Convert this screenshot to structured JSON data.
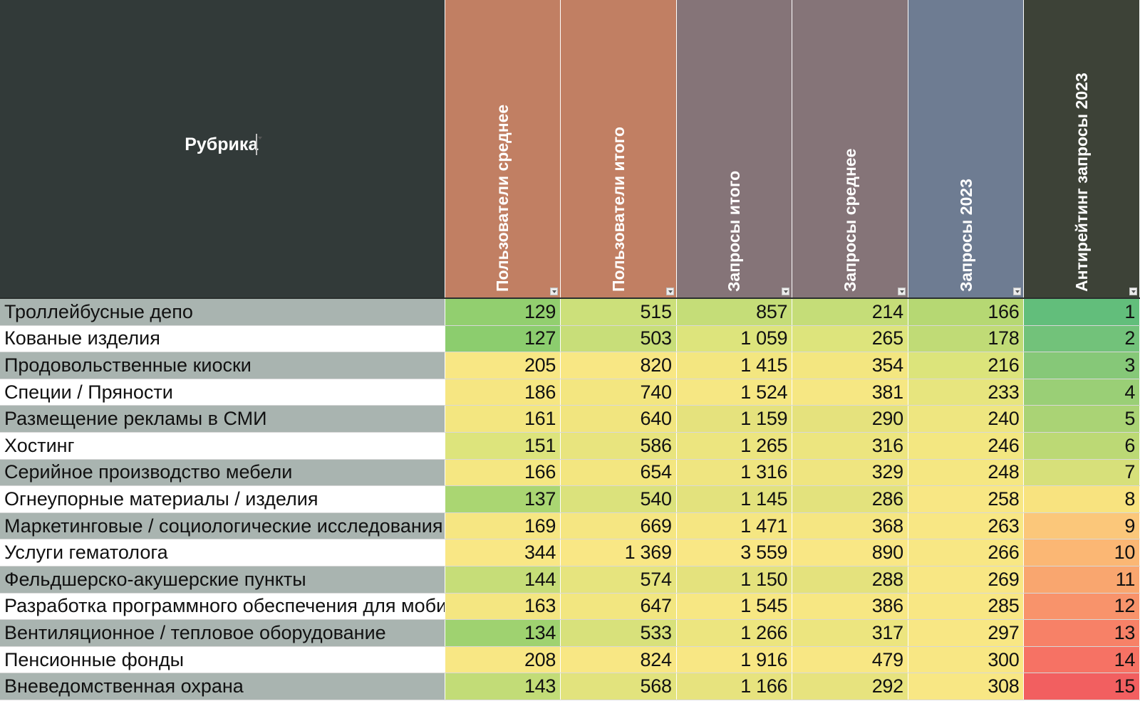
{
  "headers": {
    "rubric": "Рубрика",
    "users_avg": "Пользователи среднее",
    "users_total": "Пользователи итого",
    "requests_total": "Запросы итого",
    "requests_avg": "Запросы среднее",
    "requests_2023": "Запросы 2023",
    "antirating_2023": "Антирейтинг запросы 2023"
  },
  "header_colors": {
    "rubric": "#323a39",
    "users_avg": "#c17f63",
    "users_total": "#c17f63",
    "requests_total": "#857478",
    "requests_avg": "#857478",
    "requests_2023": "#6e7c92",
    "antirating_2023": "#3d4237"
  },
  "rows": [
    {
      "rubric": "Троллейбусные депо",
      "users_avg": "129",
      "users_total": "515",
      "requests_total": "857",
      "requests_avg": "214",
      "requests_2023": "166",
      "antirating_2023": "1",
      "colors": [
        "#92cf6f",
        "#cce07a",
        "#c5dd78",
        "#c5dd78",
        "#b6d873",
        "#62be7b"
      ]
    },
    {
      "rubric": "Кованые изделия",
      "users_avg": "127",
      "users_total": "503",
      "requests_total": "1 059",
      "requests_avg": "265",
      "requests_2023": "178",
      "antirating_2023": "2",
      "colors": [
        "#8ccd6e",
        "#c8de79",
        "#dde47c",
        "#dde47c",
        "#c0db76",
        "#72c27a"
      ]
    },
    {
      "rubric": "Продовольственные киоски",
      "users_avg": "205",
      "users_total": "820",
      "requests_total": "1 415",
      "requests_avg": "354",
      "requests_2023": "216",
      "antirating_2023": "3",
      "colors": [
        "#f8e784",
        "#f8e784",
        "#f3e680",
        "#f3e680",
        "#dce47b",
        "#86c878"
      ]
    },
    {
      "rubric": "Специи / Пряности",
      "users_avg": "186",
      "users_total": "740",
      "requests_total": "1 524",
      "requests_avg": "381",
      "requests_2023": "233",
      "antirating_2023": "4",
      "colors": [
        "#f6e682",
        "#f3e680",
        "#f6e783",
        "#f6e783",
        "#e7e57e",
        "#9acf76"
      ]
    },
    {
      "rubric": "Размещение рекламы в СМИ",
      "users_avg": "161",
      "users_total": "640",
      "requests_total": "1 159",
      "requests_avg": "290",
      "requests_2023": "240",
      "antirating_2023": "5",
      "colors": [
        "#f3e680",
        "#f1e57f",
        "#e5e27d",
        "#e5e27d",
        "#eee680",
        "#aad375"
      ]
    },
    {
      "rubric": "Хостинг",
      "users_avg": "151",
      "users_total": "586",
      "requests_total": "1 265",
      "requests_avg": "316",
      "requests_2023": "246",
      "antirating_2023": "6",
      "colors": [
        "#dde47c",
        "#e8e47e",
        "#ece57f",
        "#ece57f",
        "#f3e781",
        "#bcd975"
      ]
    },
    {
      "rubric": "Серийное производство мебели",
      "users_avg": "166",
      "users_total": "654",
      "requests_total": "1 316",
      "requests_avg": "329",
      "requests_2023": "248",
      "antirating_2023": "7",
      "colors": [
        "#f5e782",
        "#f3e680",
        "#efe580",
        "#efe580",
        "#f5e782",
        "#d7e07a"
      ]
    },
    {
      "rubric": "Огнеупорные материалы / изделия",
      "users_avg": "137",
      "users_total": "540",
      "requests_total": "1 145",
      "requests_avg": "286",
      "requests_2023": "258",
      "antirating_2023": "8",
      "colors": [
        "#aad672",
        "#dbe27c",
        "#e3e27d",
        "#e3e27d",
        "#f8e784",
        "#f8e37f"
      ]
    },
    {
      "rubric": "Маркетинговые / социологические исследования",
      "users_avg": "169",
      "users_total": "669",
      "requests_total": "1 471",
      "requests_avg": "368",
      "requests_2023": "263",
      "antirating_2023": "9",
      "colors": [
        "#f6e682",
        "#f5e682",
        "#f5e682",
        "#f5e682",
        "#f8e784",
        "#fbc77a"
      ]
    },
    {
      "rubric": "Услуги гематолога",
      "users_avg": "344",
      "users_total": "1 369",
      "requests_total": "3 559",
      "requests_avg": "890",
      "requests_2023": "266",
      "antirating_2023": "10",
      "colors": [
        "#f9e785",
        "#f9e785",
        "#f9e785",
        "#f9e785",
        "#f8e784",
        "#fbb774"
      ]
    },
    {
      "rubric": "Фельдшерско-акушерские пункты",
      "users_avg": "144",
      "users_total": "574",
      "requests_total": "1 150",
      "requests_avg": "288",
      "requests_2023": "269",
      "antirating_2023": "11",
      "colors": [
        "#c6dd78",
        "#e6e47e",
        "#e4e27d",
        "#e4e27d",
        "#f8e784",
        "#f9a66f"
      ]
    },
    {
      "rubric": "Разработка программного обеспечения для мобильных ус",
      "users_avg": "163",
      "users_total": "647",
      "requests_total": "1 545",
      "requests_avg": "386",
      "requests_2023": "285",
      "antirating_2023": "12",
      "colors": [
        "#f4e681",
        "#f2e680",
        "#f7e783",
        "#f7e783",
        "#f8e784",
        "#f8936b"
      ]
    },
    {
      "rubric": "Вентиляционное / тепловое оборудование",
      "users_avg": "134",
      "users_total": "533",
      "requests_total": "1 266",
      "requests_avg": "317",
      "requests_2023": "297",
      "antirating_2023": "13",
      "colors": [
        "#9fd270",
        "#d8e17b",
        "#ece57f",
        "#ece57f",
        "#f8e784",
        "#f78167"
      ]
    },
    {
      "rubric": "Пенсионные фонды",
      "users_avg": "208",
      "users_total": "824",
      "requests_total": "1 916",
      "requests_avg": "479",
      "requests_2023": "300",
      "antirating_2023": "14",
      "colors": [
        "#f8e784",
        "#f8e784",
        "#f8e784",
        "#f8e784",
        "#f8e784",
        "#f67264"
      ]
    },
    {
      "rubric": "Вневедомственная охрана",
      "users_avg": "143",
      "users_total": "568",
      "requests_total": "1 166",
      "requests_avg": "292",
      "requests_2023": "308",
      "antirating_2023": "15",
      "colors": [
        "#c2dc77",
        "#e2e37d",
        "#e7e37e",
        "#e7e37e",
        "#f8e784",
        "#f25f60"
      ]
    }
  ]
}
